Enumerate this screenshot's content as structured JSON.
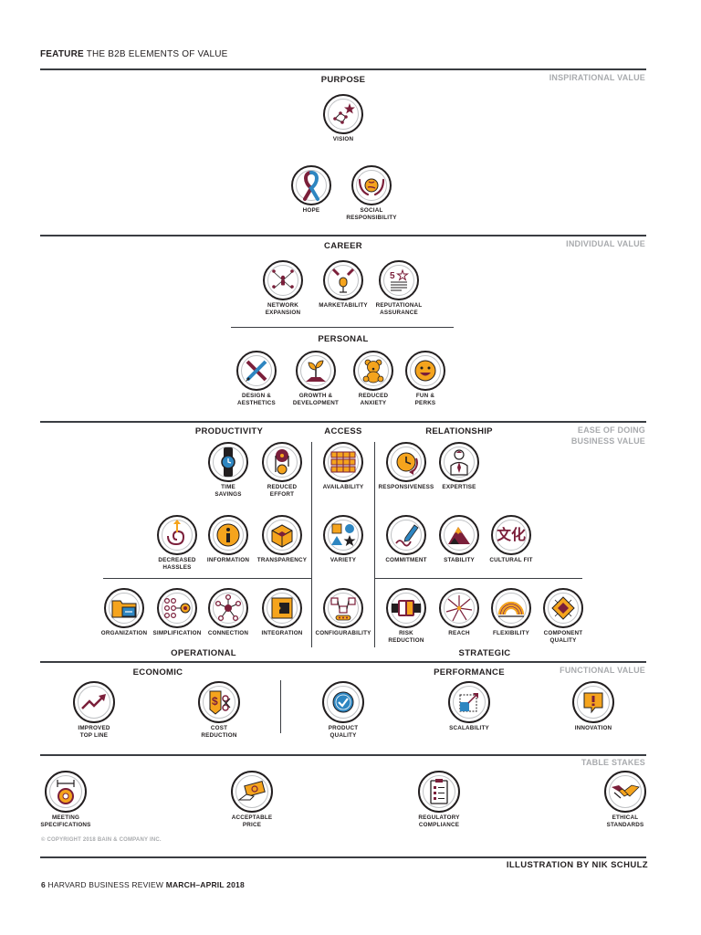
{
  "header": {
    "feature_label": "FEATURE",
    "feature_title": "THE B2B ELEMENTS OF VALUE"
  },
  "tiers": {
    "inspirational": "INSPIRATIONAL VALUE",
    "individual": "INDIVIDUAL VALUE",
    "ease_line1": "EASE OF DOING",
    "ease_line2": "BUSINESS VALUE",
    "functional": "FUNCTIONAL VALUE",
    "table_stakes": "TABLE STAKES"
  },
  "sections": {
    "purpose": "PURPOSE",
    "career": "CAREER",
    "personal": "PERSONAL",
    "productivity": "PRODUCTIVITY",
    "access": "ACCESS",
    "relationship": "RELATIONSHIP",
    "operational": "OPERATIONAL",
    "strategic": "STRATEGIC",
    "economic": "ECONOMIC",
    "performance": "PERFORMANCE"
  },
  "elements": {
    "vision": {
      "label": "VISION",
      "icon": "constellation-star-icon"
    },
    "hope": {
      "label": "HOPE",
      "icon": "awareness-ribbon-icon"
    },
    "social_responsibility": {
      "label1": "SOCIAL",
      "label2": "RESPONSIBILITY",
      "icon": "hands-globe-icon"
    },
    "network_expansion": {
      "label1": "NETWORK",
      "label2": "EXPANSION",
      "icon": "network-people-icon"
    },
    "marketability": {
      "label": "MARKETABILITY",
      "icon": "spotlight-microphone-icon"
    },
    "reputational_assurance": {
      "label1": "REPUTATIONAL",
      "label2": "ASSURANCE",
      "icon": "five-star-rating-icon"
    },
    "design_aesthetics": {
      "label1": "DESIGN &",
      "label2": "AESTHETICS",
      "icon": "pencil-brush-icon"
    },
    "growth_development": {
      "label1": "GROWTH &",
      "label2": "DEVELOPMENT",
      "icon": "sprout-icon"
    },
    "reduced_anxiety": {
      "label1": "REDUCED",
      "label2": "ANXIETY",
      "icon": "teddy-bear-icon"
    },
    "fun_perks": {
      "label1": "FUN &",
      "label2": "PERKS",
      "icon": "smiley-face-icon"
    },
    "time_savings": {
      "label1": "TIME",
      "label2": "SAVINGS",
      "icon": "wristwatch-icon"
    },
    "reduced_effort": {
      "label1": "REDUCED",
      "label2": "EFFORT",
      "icon": "pulley-icon"
    },
    "availability": {
      "label": "AVAILABILITY",
      "icon": "stacked-shelves-icon"
    },
    "responsiveness": {
      "label": "RESPONSIVENESS",
      "icon": "clock-arrow-icon"
    },
    "expertise": {
      "label": "EXPERTISE",
      "icon": "expert-person-icon"
    },
    "decreased_hassles": {
      "label1": "DECREASED",
      "label2": "HASSLES",
      "icon": "spiral-arrow-icon"
    },
    "information": {
      "label": "INFORMATION",
      "icon": "info-i-icon"
    },
    "transparency": {
      "label": "TRANSPARENCY",
      "icon": "transparent-cube-icon"
    },
    "variety": {
      "label": "VARIETY",
      "icon": "shapes-icon"
    },
    "commitment": {
      "label": "COMMITMENT",
      "icon": "pen-signature-icon"
    },
    "stability": {
      "label": "STABILITY",
      "icon": "mountain-icon"
    },
    "cultural_fit": {
      "label": "CULTURAL FIT",
      "glyph": "文化",
      "icon": "culture-characters-icon"
    },
    "organization": {
      "label": "ORGANIZATION",
      "icon": "folder-icon"
    },
    "simplification": {
      "label": "SIMPLIFICATION",
      "icon": "dots-to-target-icon"
    },
    "connection": {
      "label": "CONNECTION",
      "icon": "hub-nodes-icon"
    },
    "integration": {
      "label": "INTEGRATION",
      "icon": "puzzle-square-icon"
    },
    "configurability": {
      "label": "CONFIGURABILITY",
      "icon": "configuration-icon"
    },
    "risk_reduction": {
      "label1": "RISK",
      "label2": "REDUCTION",
      "icon": "seatbelt-buckle-icon"
    },
    "reach": {
      "label": "REACH",
      "icon": "burst-lines-icon"
    },
    "flexibility": {
      "label": "FLEXIBILITY",
      "icon": "spring-coil-icon"
    },
    "component_quality": {
      "label1": "COMPONENT",
      "label2": "QUALITY",
      "icon": "microchip-icon"
    },
    "improved_top_line": {
      "label1": "IMPROVED",
      "label2": "TOP LINE",
      "icon": "trend-up-arrow-icon"
    },
    "cost_reduction": {
      "label1": "COST",
      "label2": "REDUCTION",
      "icon": "price-tag-scissors-icon"
    },
    "product_quality": {
      "label1": "PRODUCT",
      "label2": "QUALITY",
      "icon": "check-badge-icon"
    },
    "scalability": {
      "label": "SCALABILITY",
      "icon": "scale-up-squares-icon"
    },
    "innovation": {
      "label": "INNOVATION",
      "icon": "exclamation-box-icon"
    },
    "meeting_specifications": {
      "label1": "MEETING",
      "label2": "SPECIFICATIONS",
      "icon": "caliper-measure-icon"
    },
    "acceptable_price": {
      "label1": "ACCEPTABLE",
      "label2": "PRICE",
      "icon": "money-hand-icon"
    },
    "regulatory_compliance": {
      "label1": "REGULATORY",
      "label2": "COMPLIANCE",
      "icon": "clipboard-checklist-icon"
    },
    "ethical_standards": {
      "label1": "ETHICAL",
      "label2": "STANDARDS",
      "icon": "handshake-icon"
    }
  },
  "copyright": "© COPYRIGHT 2018 BAIN & COMPANY INC.",
  "credit": "ILLUSTRATION BY NIK SCHULZ",
  "footer": {
    "page": "6",
    "publication": "HARVARD BUSINESS REVIEW",
    "issue": "MARCH–APRIL 2018"
  },
  "colors": {
    "maroon": "#7b1f3a",
    "gold": "#f5a41d",
    "blue": "#2e86c1",
    "ink": "#231f20",
    "tier_gray": "#a9abae"
  }
}
